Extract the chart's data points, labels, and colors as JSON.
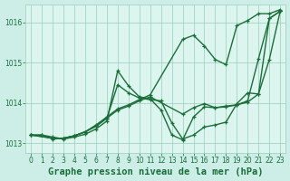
{
  "background_color": "#cceee6",
  "plot_bg_color": "#ddf5ef",
  "grid_color": "#99ccbb",
  "line_color": "#1a6e3a",
  "xlabel": "Graphe pression niveau de la mer (hPa)",
  "xlabel_fontsize": 7.5,
  "ylim": [
    1012.75,
    1016.45
  ],
  "xlim": [
    -0.5,
    23.5
  ],
  "yticks": [
    1013,
    1014,
    1015,
    1016
  ],
  "xticks": [
    0,
    1,
    2,
    3,
    4,
    5,
    6,
    7,
    8,
    9,
    10,
    11,
    12,
    13,
    14,
    15,
    16,
    17,
    18,
    19,
    20,
    21,
    22,
    23
  ],
  "lines": [
    {
      "x": [
        0,
        1,
        2,
        3,
        4,
        5,
        6,
        7,
        8,
        9,
        10,
        11,
        12,
        13,
        14,
        15,
        16,
        17,
        18,
        19,
        20,
        21,
        22,
        23
      ],
      "y": [
        1013.2,
        1013.2,
        1013.15,
        1013.1,
        1013.15,
        1013.22,
        1013.35,
        1013.55,
        1014.8,
        1014.42,
        1014.15,
        1014.1,
        1013.82,
        1013.2,
        1013.08,
        1013.65,
        1013.9,
        1013.88,
        1013.92,
        1013.95,
        1014.05,
        1015.1,
        1016.1,
        1016.28
      ]
    },
    {
      "x": [
        0,
        1,
        2,
        3,
        4,
        5,
        6,
        7,
        8,
        9,
        10,
        11,
        12,
        13,
        14,
        15,
        16,
        17,
        18,
        19,
        20,
        21,
        22,
        23
      ],
      "y": [
        1013.2,
        1013.2,
        1013.1,
        1013.12,
        1013.18,
        1013.28,
        1013.42,
        1013.62,
        1014.45,
        1014.25,
        1014.12,
        1014.08,
        1014.05,
        1013.5,
        1013.1,
        1013.2,
        1013.4,
        1013.45,
        1013.52,
        1013.98,
        1014.25,
        1014.22,
        1015.08,
        1016.28
      ]
    },
    {
      "x": [
        0,
        2,
        3,
        4,
        5,
        6,
        7,
        8,
        9,
        10,
        11,
        14,
        15,
        16,
        17,
        18,
        19,
        20,
        21,
        22,
        23
      ],
      "y": [
        1013.2,
        1013.12,
        1013.12,
        1013.18,
        1013.28,
        1013.45,
        1013.65,
        1013.85,
        1013.95,
        1014.08,
        1014.2,
        1015.58,
        1015.68,
        1015.42,
        1015.08,
        1014.95,
        1015.92,
        1016.05,
        1016.22,
        1016.22,
        1016.32
      ]
    },
    {
      "x": [
        0,
        2,
        3,
        4,
        5,
        6,
        7,
        8,
        9,
        10,
        11,
        14,
        15,
        16,
        17,
        18,
        19,
        20,
        21,
        22,
        23
      ],
      "y": [
        1013.2,
        1013.12,
        1013.12,
        1013.18,
        1013.28,
        1013.42,
        1013.62,
        1013.82,
        1013.92,
        1014.05,
        1014.15,
        1013.72,
        1013.88,
        1013.98,
        1013.88,
        1013.9,
        1013.95,
        1014.02,
        1014.22,
        1016.1,
        1016.28
      ]
    }
  ]
}
